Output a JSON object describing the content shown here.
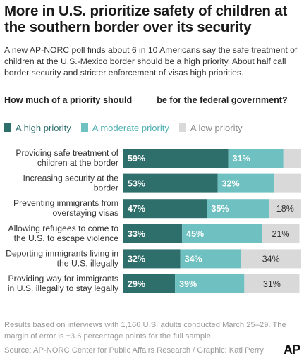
{
  "header": {
    "title": "More in U.S. prioritize safety of children at the southern border over its security",
    "subtitle": "A new AP-NORC poll finds about 6 in 10 Americans say the safe treatment of children at the U.S.-Mexico border should be a high priority. About half call border security and stricter enforcement of visas high priorities.",
    "question": "How much of a priority should ____ be for the federal government?"
  },
  "legend": {
    "high": "A high priority",
    "moderate": "A moderate priority",
    "low": "A low priority"
  },
  "colors": {
    "high": "#2e6e6b",
    "moderate": "#6fc0c1",
    "low": "#d9d9d9"
  },
  "chart_data": {
    "type": "bar",
    "orientation": "horizontal",
    "stacked": true,
    "categories": [
      "Providing safe treatment of children at the border",
      "Increasing security at the border",
      "Preventing immigrants from overstaying visas",
      "Allowing refugees to come to the U.S. to escape violence",
      "Deporting immigrants living in the U.S. illegally",
      "Providing way for immigrants in U.S. illegally to stay legally"
    ],
    "series": [
      {
        "name": "A high priority",
        "values": [
          59,
          53,
          47,
          33,
          32,
          29
        ],
        "labels": [
          "59%",
          "53%",
          "47%",
          "33%",
          "32%",
          "29%"
        ]
      },
      {
        "name": "A moderate priority",
        "values": [
          31,
          32,
          35,
          45,
          34,
          39
        ],
        "labels": [
          "31%",
          "32%",
          "35%",
          "45%",
          "34%",
          "39%"
        ]
      },
      {
        "name": "A low priority",
        "values": [
          10,
          15,
          18,
          21,
          34,
          31
        ],
        "labels": [
          "",
          "",
          "18%",
          "21%",
          "34%",
          "31%"
        ]
      }
    ],
    "xlim": [
      0,
      100
    ]
  },
  "footer": {
    "note": "Results based on interviews with 1,166 U.S. adults conducted March 25–29. The margin of error is ±3.6 percentage points for the full sample.",
    "source": "Source: AP-NORC Center for Public Affairs Research / Graphic: Kati Perry",
    "logo": "AP"
  }
}
